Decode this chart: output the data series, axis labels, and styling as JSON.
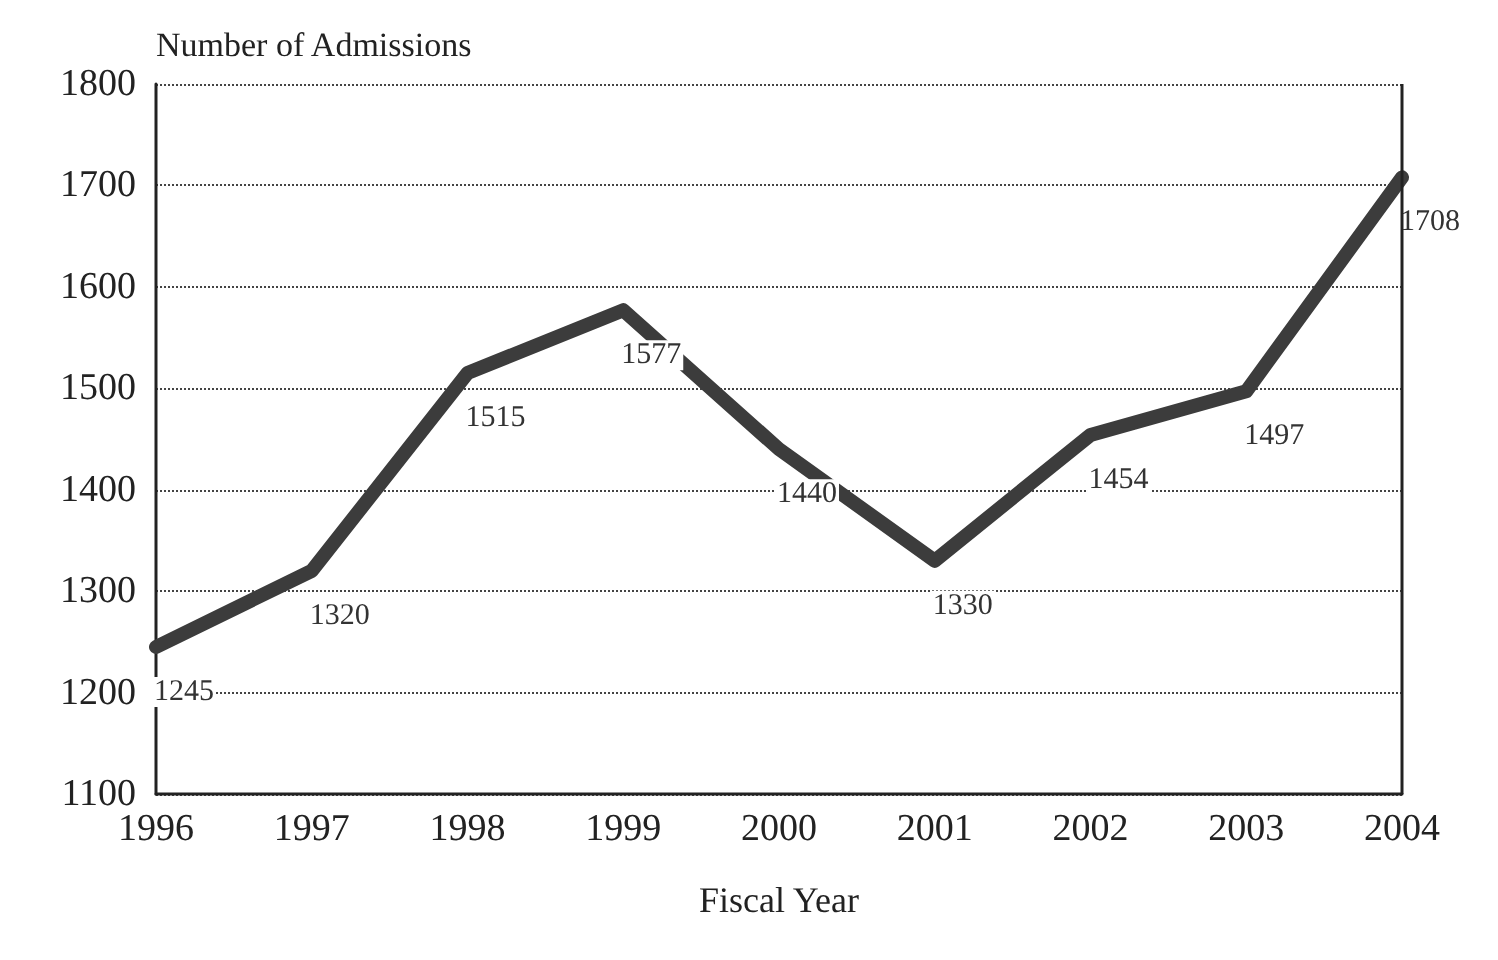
{
  "chart_data": {
    "type": "line",
    "ylabel": "Number of Admissions",
    "xlabel": "Fiscal Year",
    "categories": [
      "1996",
      "1997",
      "1998",
      "1999",
      "2000",
      "2001",
      "2002",
      "2003",
      "2004"
    ],
    "series": [
      {
        "color": "#3c3c3c",
        "values": [
          1245,
          1320,
          1515,
          1577,
          1440,
          1330,
          1454,
          1497,
          1708
        ]
      }
    ],
    "ylim": [
      1100,
      1800
    ],
    "yticks": [
      1100,
      1200,
      1300,
      1400,
      1500,
      1600,
      1700,
      1800
    ],
    "grid": "y",
    "data_labels": true,
    "marker": "none",
    "line_style": "solid"
  }
}
